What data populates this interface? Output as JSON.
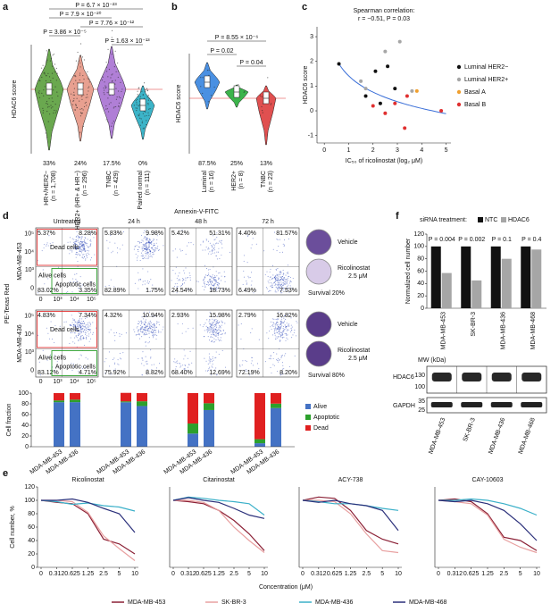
{
  "chart_data": [
    {
      "type": "violin",
      "panel": "a",
      "ylabel": "HDAC6 score",
      "categories": [
        "HR+/HER2−",
        "HER2+ (HR+ & HR−)",
        "TNBC",
        "Paired normal"
      ],
      "n_labels": [
        "(n = 1,708)",
        "(n = 296)",
        "(n = 429)",
        "(n = 111)"
      ],
      "colors": [
        "#6aa84f",
        "#e8a090",
        "#b07fd6",
        "#3cb4c8"
      ],
      "percent_labels": [
        "33%",
        "24%",
        "17.5%",
        "0%"
      ],
      "comparisons": [
        "P = 6.7 × 10⁻²³",
        "P = 7.9 × 10⁻²⁰",
        "P = 7.76 × 10⁻¹²",
        "P = 3.86 × 10⁻⁵",
        "P = 1.63 × 10⁻¹³"
      ]
    },
    {
      "type": "violin",
      "panel": "b",
      "ylabel": "HDAC6 score",
      "categories": [
        "Luminal",
        "HER2+",
        "TNBC"
      ],
      "n_labels": [
        "(n = 16)",
        "(n = 8)",
        "(n = 23)"
      ],
      "colors": [
        "#4a90e2",
        "#3cb44b",
        "#e05050"
      ],
      "percent_labels": [
        "87.5%",
        "25%",
        "13%"
      ],
      "comparisons": [
        "P = 8.55 × 10⁻⁶",
        "P = 0.02",
        "P = 0.04"
      ]
    },
    {
      "type": "scatter",
      "panel": "c",
      "annotations": [
        "Spearman correlation:",
        "r = −0.51, P = 0.03"
      ],
      "xlabel": "IC₅₀ of ricolinostat (log₂ μM)",
      "ylabel": "HDAC6 score",
      "xlim": [
        -0.3,
        5.2
      ],
      "ylim": [
        -1.3,
        3.4
      ],
      "xticks": [
        0,
        1,
        2,
        3,
        4,
        5
      ],
      "yticks": [
        -1,
        0,
        1,
        2,
        3
      ],
      "fit_color": "#3a6fd8",
      "series": [
        {
          "name": "Luminal HER2−",
          "color": "#111111",
          "x": [
            0.6,
            1.7,
            2.1,
            2.3,
            2.6,
            2.9
          ],
          "y": [
            1.9,
            0.6,
            1.6,
            0.3,
            1.8,
            0.9
          ]
        },
        {
          "name": "Luminal HER2+",
          "color": "#a6a6a6",
          "x": [
            1.5,
            1.7,
            2.5,
            3.1,
            3.6
          ],
          "y": [
            1.2,
            0.9,
            2.4,
            2.8,
            0.8
          ]
        },
        {
          "name": "Basal A",
          "color": "#f0a030",
          "x": [
            3.8
          ],
          "y": [
            0.8
          ]
        },
        {
          "name": "Basal B",
          "color": "#e03030",
          "x": [
            2.0,
            2.5,
            2.9,
            3.4,
            3.3,
            4.8
          ],
          "y": [
            0.2,
            -0.1,
            0.3,
            0.6,
            -0.7,
            0.0
          ]
        }
      ]
    },
    {
      "type": "stacked_bar",
      "ylabel": "Cell fraction",
      "categories": [
        "MDA-MB-453",
        "MDA-MB-436",
        "MDA-MB-453",
        "MDA-MB-436",
        "MDA-MB-453",
        "MDA-MB-436",
        "MDA-MB-453",
        "MDA-MB-436"
      ],
      "ylim": [
        0,
        100
      ],
      "yticks": [
        0,
        20,
        40,
        60,
        80,
        100
      ],
      "series": [
        {
          "name": "Alive",
          "color": "#4472c4",
          "values": [
            83.02,
            83.12,
            82.89,
            75.92,
            24.54,
            68.4,
            6.49,
            72.19
          ]
        },
        {
          "name": "Apoptotic",
          "color": "#2ca02c",
          "values": [
            3.35,
            4.71,
            1.75,
            8.82,
            18.73,
            12.69,
            7.53,
            8.2
          ]
        },
        {
          "name": "Dead",
          "color": "#e02020",
          "values": [
            13.65,
            12.17,
            15.81,
            15.26,
            56.73,
            18.91,
            85.97,
            19.61
          ]
        }
      ]
    },
    {
      "type": "bar",
      "panel": "f",
      "ylabel": "Normalized cell number",
      "legend_title": "siRNA treatment:",
      "categories": [
        "MDA-MB-453",
        "SK-BR-3",
        "MDA-MB-436",
        "MDA-MB-468"
      ],
      "category_colors": [
        "#e03030",
        "#e03030",
        "#2a3fc0",
        "#2a3fc0"
      ],
      "p_labels": [
        "P = 0.004",
        "P = 0.002",
        "P = 0.1",
        "P = 0.4"
      ],
      "ylim": [
        0,
        120
      ],
      "yticks": [
        0,
        20,
        40,
        60,
        80,
        100,
        120
      ],
      "series": [
        {
          "name": "NTC",
          "color": "#111111",
          "values": [
            100,
            100,
            100,
            100
          ]
        },
        {
          "name": "HDAC6",
          "color": "#a6a6a6",
          "values": [
            57,
            45,
            80,
            95
          ]
        }
      ]
    },
    {
      "type": "line",
      "panel": "e",
      "title": "Ricolinostat",
      "ylabel": "Cell number, %",
      "xlabel": "Concentration (μM)",
      "categories": [
        "0",
        "0.312",
        "0.625",
        "1.25",
        "2.5",
        "5",
        "10"
      ],
      "ylim": [
        0,
        120
      ],
      "yticks": [
        0,
        20,
        40,
        60,
        80,
        100,
        120
      ],
      "series": [
        {
          "name": "MDA-MB-453",
          "color": "#8b2035",
          "values": [
            100,
            97,
            95,
            80,
            42,
            35,
            20
          ]
        },
        {
          "name": "SK-BR-3",
          "color": "#e8a0a0",
          "values": [
            100,
            100,
            98,
            82,
            47,
            28,
            10
          ]
        },
        {
          "name": "MDA-MB-436",
          "color": "#3bb0c9",
          "values": [
            100,
            98,
            94,
            96,
            92,
            90,
            84
          ]
        },
        {
          "name": "MDA-MB-468",
          "color": "#2a2f7a",
          "values": [
            100,
            100,
            102,
            97,
            88,
            80,
            52
          ]
        }
      ]
    },
    {
      "type": "line",
      "title": "Citarinostat",
      "categories": [
        "0",
        "0.312",
        "0.625",
        "1.25",
        "2.5",
        "5",
        "10"
      ],
      "ylim": [
        0,
        120
      ],
      "series": [
        {
          "color": "#8b2035",
          "values": [
            100,
            98,
            95,
            85,
            70,
            50,
            25
          ]
        },
        {
          "color": "#e8a0a0",
          "values": [
            100,
            100,
            97,
            85,
            60,
            40,
            22
          ]
        },
        {
          "color": "#3bb0c9",
          "values": [
            100,
            105,
            103,
            100,
            98,
            95,
            78
          ]
        },
        {
          "color": "#2a2f7a",
          "values": [
            100,
            104,
            100,
            97,
            88,
            78,
            73
          ]
        }
      ]
    },
    {
      "type": "line",
      "title": "ACY-738",
      "categories": [
        "0",
        "0.312",
        "0.625",
        "1.25",
        "2.5",
        "5",
        "10"
      ],
      "ylim": [
        0,
        120
      ],
      "series": [
        {
          "color": "#8b2035",
          "values": [
            100,
            105,
            103,
            85,
            55,
            42,
            35
          ]
        },
        {
          "color": "#e8a0a0",
          "values": [
            100,
            100,
            98,
            80,
            50,
            25,
            22
          ]
        },
        {
          "color": "#3bb0c9",
          "values": [
            100,
            98,
            95,
            95,
            92,
            88,
            85
          ]
        },
        {
          "color": "#2a2f7a",
          "values": [
            100,
            97,
            100,
            95,
            92,
            85,
            55
          ]
        }
      ]
    },
    {
      "type": "line",
      "title": "CAY-10603",
      "categories": [
        "0",
        "0.312",
        "0.625",
        "1.25",
        "2.5",
        "5",
        "10"
      ],
      "ylim": [
        0,
        120
      ],
      "series": [
        {
          "color": "#8b2035",
          "values": [
            100,
            102,
            98,
            80,
            45,
            40,
            25
          ]
        },
        {
          "color": "#e8a0a0",
          "values": [
            100,
            98,
            95,
            78,
            42,
            30,
            22
          ]
        },
        {
          "color": "#3bb0c9",
          "values": [
            100,
            100,
            102,
            100,
            95,
            88,
            78
          ]
        },
        {
          "color": "#2a2f7a",
          "values": [
            100,
            98,
            100,
            95,
            85,
            65,
            40
          ]
        }
      ]
    }
  ],
  "flow_cytometry": {
    "panel": "d",
    "xlabel": "Annexin-V-FITC",
    "ylabel": "PE-Texas Red",
    "timepoints": [
      "Untreated",
      "24 h",
      "48 h",
      "72 h"
    ],
    "axis_ticks": [
      "0",
      "10³",
      "10⁴",
      "10⁵"
    ],
    "gate_labels": [
      "Dead cells",
      "Alive cells",
      "Apoptotic cells"
    ],
    "well_labels": [
      "Vehicle",
      "Ricolinostat",
      "2.5 μM"
    ],
    "rows": [
      {
        "cell_line": "MDA-MB-453",
        "survival": "Survival 20%",
        "quadrants": [
          [
            "5.37%",
            "8.28%",
            "83.02%",
            "3.35%"
          ],
          [
            "5.83%",
            "9.98%",
            "82.89%",
            "1.75%"
          ],
          [
            "5.42%",
            "51.31%",
            "24.54%",
            "18.73%"
          ],
          [
            "4.40%",
            "81.57%",
            "6.49%",
            "7.53%"
          ]
        ]
      },
      {
        "cell_line": "MDA-MB-436",
        "survival": "Survival 80%",
        "quadrants": [
          [
            "4.83%",
            "7.34%",
            "83.12%",
            "4.71%"
          ],
          [
            "4.32%",
            "10.94%",
            "75.92%",
            "8.82%"
          ],
          [
            "2.93%",
            "15.98%",
            "68.40%",
            "12.69%"
          ],
          [
            "2.79%",
            "16.82%",
            "72.19%",
            "8.20%"
          ]
        ]
      }
    ]
  },
  "western_blot": {
    "mw_label": "MW (kDa)",
    "proteins": [
      "HDAC6",
      "GAPDH"
    ],
    "hdac6_markers": [
      "130",
      "100"
    ],
    "gapdh_markers": [
      "35",
      "25"
    ]
  }
}
